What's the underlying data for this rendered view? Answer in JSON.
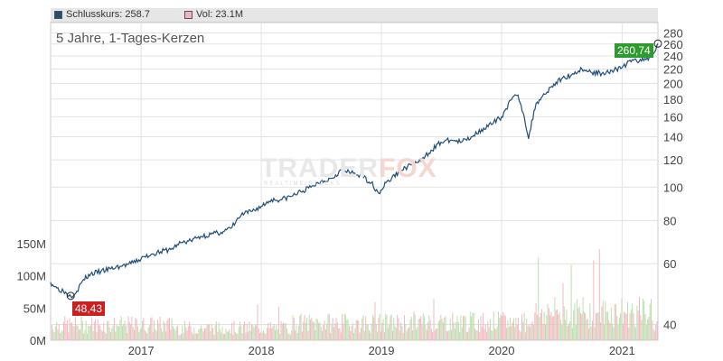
{
  "legend": {
    "close_label": "Schlusskurs: 258.7",
    "vol_label": "Vol: 23.1M",
    "close_color": "#1f4e79",
    "vol_color": "#f3b3bd"
  },
  "subtitle": "5 Jahre, 1-Tages-Kerzen",
  "watermark": {
    "main": "TRADER",
    "accent": "FOX",
    "sub": "REALTIME STOCKS"
  },
  "labels": {
    "last_price": "260,74",
    "min_price": "48,43",
    "last_color": "#2e9b2e",
    "min_color": "#cc1f1f"
  },
  "chart_data": {
    "type": "line",
    "title": "5 Jahre, 1-Tages-Kerzen",
    "y_scale": "log",
    "ylim": [
      36,
      300
    ],
    "y_ticks": [
      40,
      60,
      80,
      100,
      120,
      140,
      160,
      180,
      200,
      220,
      240,
      260,
      280
    ],
    "x_ticks": [
      "2017",
      "2018",
      "2019",
      "2020",
      "2021"
    ],
    "x_tick_dates": [
      "2017-01-01",
      "2018-01-01",
      "2019-01-01",
      "2020-01-01",
      "2021-01-01"
    ],
    "xlim": [
      "2016-04-01",
      "2021-04-20"
    ],
    "grid": true,
    "series": [
      {
        "name": "Schlusskurs",
        "x": [
          "2016-04-01",
          "2016-04-20",
          "2016-05-10",
          "2016-06-01",
          "2016-06-20",
          "2016-07-10",
          "2016-08-01",
          "2016-09-01",
          "2016-10-01",
          "2016-11-01",
          "2016-12-01",
          "2017-01-01",
          "2017-02-01",
          "2017-03-01",
          "2017-04-01",
          "2017-05-01",
          "2017-06-01",
          "2017-07-01",
          "2017-08-01",
          "2017-09-01",
          "2017-10-01",
          "2017-11-01",
          "2017-12-01",
          "2018-01-01",
          "2018-02-01",
          "2018-03-01",
          "2018-04-01",
          "2018-05-01",
          "2018-06-01",
          "2018-07-01",
          "2018-08-01",
          "2018-09-01",
          "2018-10-01",
          "2018-11-01",
          "2018-12-01",
          "2018-12-24",
          "2019-01-15",
          "2019-02-01",
          "2019-03-01",
          "2019-04-01",
          "2019-05-01",
          "2019-06-01",
          "2019-07-01",
          "2019-08-01",
          "2019-09-01",
          "2019-10-01",
          "2019-11-01",
          "2019-12-01",
          "2020-01-01",
          "2020-02-01",
          "2020-02-20",
          "2020-03-10",
          "2020-03-23",
          "2020-04-15",
          "2020-05-01",
          "2020-06-01",
          "2020-07-01",
          "2020-08-01",
          "2020-09-01",
          "2020-10-01",
          "2020-11-01",
          "2020-12-01",
          "2021-01-01",
          "2021-02-01",
          "2021-03-01",
          "2021-04-01",
          "2021-04-20"
        ],
        "values": [
          53,
          51,
          50,
          48.4,
          50,
          54,
          56,
          57,
          58,
          59,
          60,
          62,
          64,
          65,
          66,
          69,
          70,
          72,
          73,
          74,
          76,
          83,
          85,
          88,
          92,
          92,
          94,
          97,
          100,
          104,
          106,
          112,
          110,
          108,
          103,
          96,
          103,
          106,
          112,
          116,
          119,
          128,
          135,
          137,
          135,
          140,
          147,
          152,
          160,
          180,
          185,
          160,
          138,
          175,
          182,
          196,
          206,
          212,
          220,
          215,
          214,
          218,
          222,
          234,
          232,
          240,
          260.7
        ]
      },
      {
        "name": "Vol",
        "axis": "left",
        "ylim": [
          0,
          150
        ],
        "y_ticks": [
          "0M",
          "50M",
          "100M",
          "150M"
        ],
        "x": [
          "2016",
          "2017",
          "2018",
          "2019",
          "2020",
          "2021"
        ],
        "values": [
          25,
          20,
          28,
          30,
          45,
          30
        ]
      }
    ]
  }
}
